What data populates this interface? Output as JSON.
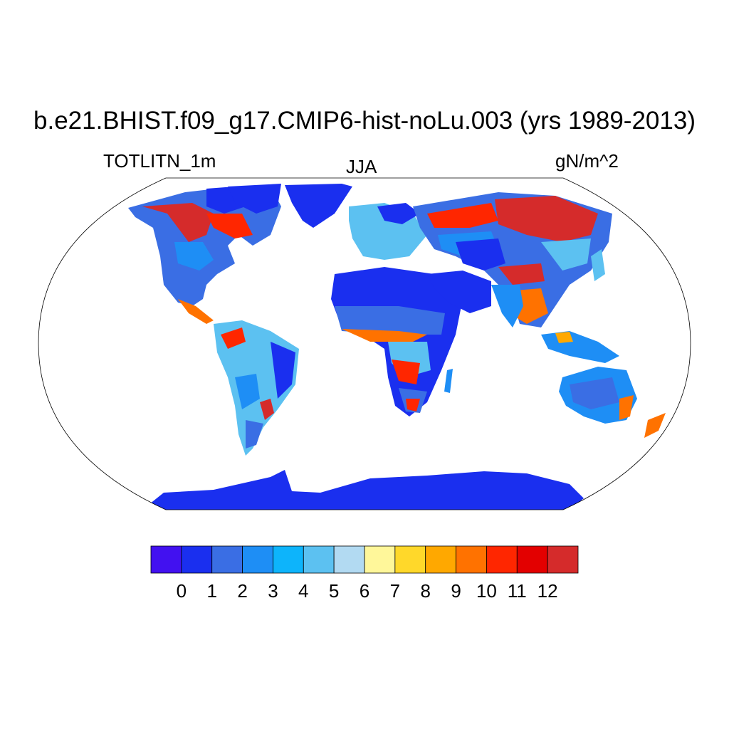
{
  "title": "b.e21.BHIST.f09_g17.CMIP6-hist-noLu.003 (yrs 1989-2013)",
  "subtitle_left": "TOTLITN_1m",
  "subtitle_center": "JJA",
  "subtitle_right": "gN/m^2",
  "colorbar": {
    "colors": [
      "#4211f0",
      "#1a2fef",
      "#3a6ee4",
      "#1e8ef5",
      "#0db4fb",
      "#5cc1f1",
      "#b2daf2",
      "#fff79a",
      "#ffd82a",
      "#ffa800",
      "#ff7200",
      "#ff2600",
      "#e30000",
      "#d52b2b"
    ],
    "labels": [
      "0",
      "1",
      "2",
      "3",
      "4",
      "5",
      "6",
      "7",
      "8",
      "9",
      "10",
      "11",
      "12"
    ]
  }
}
